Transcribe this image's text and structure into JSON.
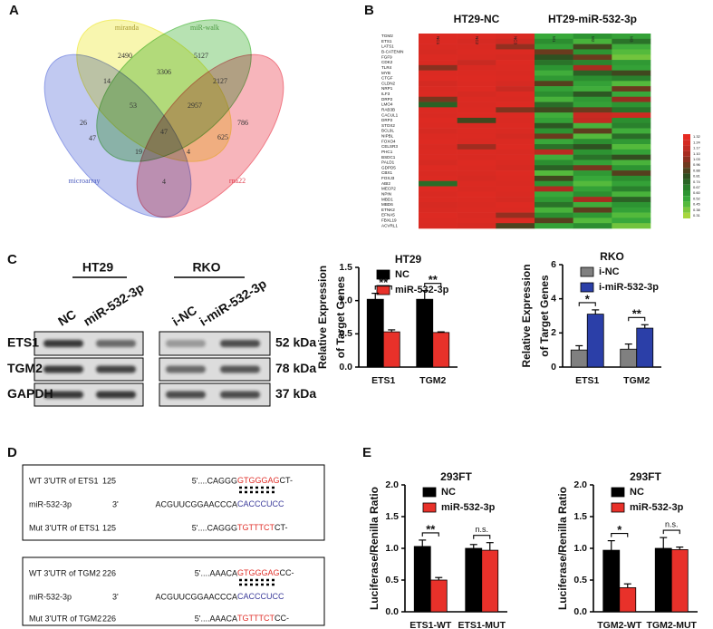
{
  "panel_labels": [
    "A",
    "B",
    "C",
    "D",
    "E"
  ],
  "chart_data": [
    {
      "type": "venn",
      "sets": [
        {
          "name": "miranda",
          "color": "#f3ee6e",
          "label_color": "#a89a30"
        },
        {
          "name": "miR-walk",
          "color": "#7ccb72",
          "label_color": "#4a9a40"
        },
        {
          "name": "microarray",
          "color": "#8e9ce6",
          "label_color": "#5060c0"
        },
        {
          "name": "rna22",
          "color": "#f07884",
          "label_color": "#e04050"
        }
      ],
      "values": [
        2490,
        5127,
        26,
        786,
        3306,
        14,
        2127,
        53,
        2957,
        625,
        47,
        47,
        19,
        4,
        4
      ]
    },
    {
      "type": "heatmap",
      "column_groups": [
        "HT29-NC",
        "HT29-miR-532-3p"
      ],
      "columns": [
        "NC1",
        "NC2",
        "NC3",
        "M1",
        "M2",
        "M3"
      ],
      "rows": [
        "TGM2",
        "ETS1",
        "LATS1",
        "B-CATENIN",
        "FGF9",
        "CDK2",
        "TLR4",
        "MYB",
        "CTGF",
        "CLDN2",
        "NRP1",
        "ILF3",
        "DRP2",
        "LMO4",
        "RAB3B",
        "CACUL1",
        "DRP2",
        "STOX2",
        "BCL9L",
        "NIPBL",
        "FOXO4",
        "CELSR3",
        "PHC1",
        "BSDC1",
        "PALD1",
        "GDPD5",
        "CBX1",
        "FOXJ3",
        "ABI2",
        "MECP2",
        "NPIN",
        "MBD1",
        "MBD6",
        "ETNK2",
        "EFNA5",
        "FBXL19",
        "ACVRL1"
      ],
      "values": [
        [
          1.28,
          1.28,
          1.26,
          0.52,
          0.6,
          0.55
        ],
        [
          1.27,
          1.25,
          1.22,
          0.62,
          0.48,
          0.7
        ],
        [
          1.26,
          1.26,
          1.05,
          0.55,
          0.85,
          0.5
        ],
        [
          1.25,
          1.27,
          1.27,
          0.95,
          0.6,
          0.45
        ],
        [
          1.27,
          1.26,
          1.25,
          0.8,
          0.95,
          0.4
        ],
        [
          1.26,
          1.2,
          1.28,
          0.7,
          0.65,
          0.58
        ],
        [
          1.02,
          1.26,
          1.27,
          0.6,
          1.1,
          0.55
        ],
        [
          1.27,
          1.27,
          1.26,
          0.5,
          0.75,
          0.85
        ],
        [
          1.28,
          1.28,
          1.27,
          0.58,
          0.62,
          0.66
        ],
        [
          1.24,
          1.27,
          1.25,
          0.9,
          0.55,
          0.45
        ],
        [
          1.26,
          1.28,
          1.2,
          0.55,
          0.5,
          0.95
        ],
        [
          1.27,
          1.25,
          1.27,
          0.62,
          0.78,
          0.52
        ],
        [
          0.98,
          1.27,
          1.26,
          0.48,
          0.58,
          1.05
        ],
        [
          0.75,
          1.26,
          1.28,
          0.72,
          0.55,
          0.6
        ],
        [
          1.27,
          1.27,
          1.0,
          0.85,
          0.95,
          0.7
        ],
        [
          1.26,
          1.28,
          1.27,
          0.5,
          1.2,
          1.22
        ],
        [
          1.28,
          0.85,
          1.26,
          0.55,
          1.18,
          0.62
        ],
        [
          1.27,
          1.26,
          1.27,
          0.78,
          0.48,
          0.66
        ],
        [
          1.25,
          1.27,
          1.26,
          0.6,
          0.92,
          0.5
        ],
        [
          1.27,
          1.27,
          1.24,
          0.95,
          0.45,
          0.72
        ],
        [
          1.28,
          1.26,
          1.27,
          0.52,
          0.62,
          0.58
        ],
        [
          1.26,
          1.08,
          1.28,
          0.7,
          0.8,
          0.45
        ],
        [
          1.27,
          1.27,
          1.26,
          1.15,
          0.6,
          0.55
        ],
        [
          1.27,
          1.26,
          1.27,
          0.5,
          0.7,
          0.82
        ],
        [
          1.25,
          1.28,
          1.26,
          0.62,
          0.55,
          0.48
        ],
        [
          1.28,
          1.27,
          1.25,
          0.75,
          0.98,
          0.6
        ],
        [
          1.26,
          1.26,
          1.28,
          0.45,
          0.58,
          0.9
        ],
        [
          1.27,
          1.25,
          1.27,
          0.85,
          0.52,
          0.62
        ],
        [
          0.72,
          1.27,
          1.26,
          0.6,
          0.45,
          0.55
        ],
        [
          1.28,
          1.26,
          1.27,
          1.12,
          0.55,
          0.66
        ],
        [
          1.26,
          1.28,
          1.26,
          0.52,
          0.62,
          0.48
        ],
        [
          1.27,
          1.27,
          1.25,
          0.58,
          1.1,
          0.75
        ],
        [
          1.25,
          1.26,
          1.28,
          0.7,
          0.5,
          0.6
        ],
        [
          1.26,
          1.27,
          1.27,
          0.48,
          0.92,
          0.55
        ],
        [
          1.28,
          1.26,
          1.05,
          0.62,
          0.58,
          0.45
        ],
        [
          1.27,
          1.27,
          1.26,
          0.9,
          0.45,
          0.52
        ],
        [
          1.26,
          1.25,
          0.88,
          0.55,
          0.62,
          0.4
        ]
      ],
      "colorbar": {
        "ticks": [
          1.32,
          1.24,
          1.17,
          {
            "value": 1.1,
            "label": "1.10"
          },
          1.03,
          0.96,
          0.88,
          0.81,
          0.74,
          0.67,
          {
            "value": 0.6,
            "label": "0.60"
          },
          0.52,
          0.45,
          0.38,
          0.31
        ],
        "colors": [
          "#e62a22",
          "#d42a22",
          "#c02a22",
          "#a82c20",
          "#8c3020",
          "#6e3a1e",
          "#4c421e",
          "#2f4f20",
          "#2a6526",
          "#2a7e2c",
          "#2d9432",
          "#38a83a",
          "#54ba3c",
          "#7ec83e",
          "#a8d63e"
        ]
      }
    },
    {
      "type": "bar",
      "title": "HT29",
      "ylabel": [
        "Relative Expression",
        "of Target Genes"
      ],
      "legend": "upper left",
      "categories": [
        "ETS1",
        "TGM2"
      ],
      "series": [
        {
          "name": "NC",
          "color": "#000000",
          "values": [
            1.02,
            1.02
          ],
          "errors": [
            0.09,
            0.13
          ]
        },
        {
          "name": "miR-532-3p",
          "color": "#e8312a",
          "values": [
            0.53,
            0.52
          ],
          "errors": [
            0.03,
            0.01
          ]
        }
      ],
      "significance": [
        "**",
        "**"
      ],
      "ylim": [
        0,
        1.5
      ],
      "yticks": [
        {
          "value": 0,
          "label": "0.0"
        },
        {
          "value": 0.5,
          "label": "0.5"
        },
        {
          "value": 1,
          "label": "1.0"
        },
        {
          "value": 1.5,
          "label": "1.5"
        }
      ]
    },
    {
      "type": "bar",
      "title": "RKO",
      "ylabel": [
        "Relative Expression",
        "of Target Genes"
      ],
      "legend": "upper left",
      "categories": [
        "ETS1",
        "TGM2"
      ],
      "series": [
        {
          "name": "i-NC",
          "color": "#808080",
          "values": [
            1.0,
            1.05
          ],
          "errors": [
            0.25,
            0.3
          ]
        },
        {
          "name": "i-miR-532-3p",
          "color": "#2b3fa8",
          "values": [
            3.1,
            2.28
          ],
          "errors": [
            0.25,
            0.2
          ]
        }
      ],
      "significance": [
        "*",
        "**"
      ],
      "ylim": [
        0,
        6
      ],
      "yticks": [
        0,
        2,
        4,
        6
      ]
    },
    {
      "type": "bar",
      "title": "293FT",
      "ylabel": [
        "Luciferase/Renilla Ratio"
      ],
      "legend": "upper left",
      "categories": [
        "ETS1-WT",
        "ETS1-MUT"
      ],
      "series": [
        {
          "name": "NC",
          "color": "#000000",
          "values": [
            1.03,
            1.0
          ],
          "errors": [
            0.1,
            0.06
          ]
        },
        {
          "name": "miR-532-3p",
          "color": "#e8312a",
          "values": [
            0.5,
            0.97
          ],
          "errors": [
            0.04,
            0.12
          ]
        }
      ],
      "significance": [
        "**",
        "n.s."
      ],
      "ylim": [
        0,
        2
      ],
      "yticks": [
        {
          "value": 0,
          "label": "0.0"
        },
        {
          "value": 0.5,
          "label": "0.5"
        },
        {
          "value": 1,
          "label": "1.0"
        },
        {
          "value": 1.5,
          "label": "1.5"
        },
        {
          "value": 2,
          "label": "2.0"
        }
      ]
    },
    {
      "type": "bar",
      "title": "293FT",
      "ylabel": [
        "Luciferase/Renilla Ratio"
      ],
      "legend": "upper left",
      "categories": [
        "TGM2-WT",
        "TGM2-MUT"
      ],
      "series": [
        {
          "name": "NC",
          "color": "#000000",
          "values": [
            0.97,
            1.0
          ],
          "errors": [
            0.15,
            0.17
          ]
        },
        {
          "name": "miR-532-3p",
          "color": "#e8312a",
          "values": [
            0.38,
            0.98
          ],
          "errors": [
            0.06,
            0.04
          ]
        }
      ],
      "significance": [
        "*",
        "n.s."
      ],
      "ylim": [
        0,
        2
      ],
      "yticks": [
        {
          "value": 0,
          "label": "0.0"
        },
        {
          "value": 0.5,
          "label": "0.5"
        },
        {
          "value": 1,
          "label": "1.0"
        },
        {
          "value": 1.5,
          "label": "1.5"
        },
        {
          "value": 2,
          "label": "2.0"
        }
      ]
    }
  ],
  "western_blot": {
    "groups": [
      "HT29",
      "RKO"
    ],
    "lanes": [
      "NC",
      "miR-532-3p",
      "i-NC",
      "i-miR-532-3p"
    ],
    "proteins": [
      "ETS1",
      "TGM2",
      "GAPDH"
    ],
    "sizes": [
      "52 kDa",
      "78 kDa",
      "37 kDa"
    ]
  },
  "sequences": [
    {
      "rows": [
        {
          "label": "WT 3'UTR of ETS1",
          "position": "125",
          "prefix": "5'....CAGGG",
          "highlight": "GTGGGAG",
          "tail": "CT-",
          "color": "#e0302a"
        },
        {
          "label": "miR-532-3p",
          "position": "3'",
          "prefix": "ACGUUCGGAACCCA",
          "highlight": "CACCCUCC",
          "color": "#3a3a9a"
        },
        {
          "label": "Mut 3'UTR of ETS1",
          "position": "125",
          "prefix": "5'....CAGGG",
          "highlight": "TGTTTCT",
          "tail": "CT-",
          "color": "#e0302a"
        }
      ]
    },
    {
      "rows": [
        {
          "label": "WT 3'UTR of TGM2",
          "position": "226",
          "prefix": "5'....AAACA",
          "highlight": "GTGGGAG",
          "tail": "CC-",
          "color": "#e0302a"
        },
        {
          "label": "miR-532-3p",
          "position": "3'",
          "prefix": "ACGUUCGGAACCCA",
          "highlight": "CACCCUCC",
          "color": "#3a3a9a"
        },
        {
          "label": "Mut 3'UTR of TGM2",
          "position": "226",
          "prefix": "5'....AAACA",
          "highlight": "TGTTTCT",
          "tail": "CC-",
          "color": "#e0302a"
        }
      ]
    }
  ]
}
